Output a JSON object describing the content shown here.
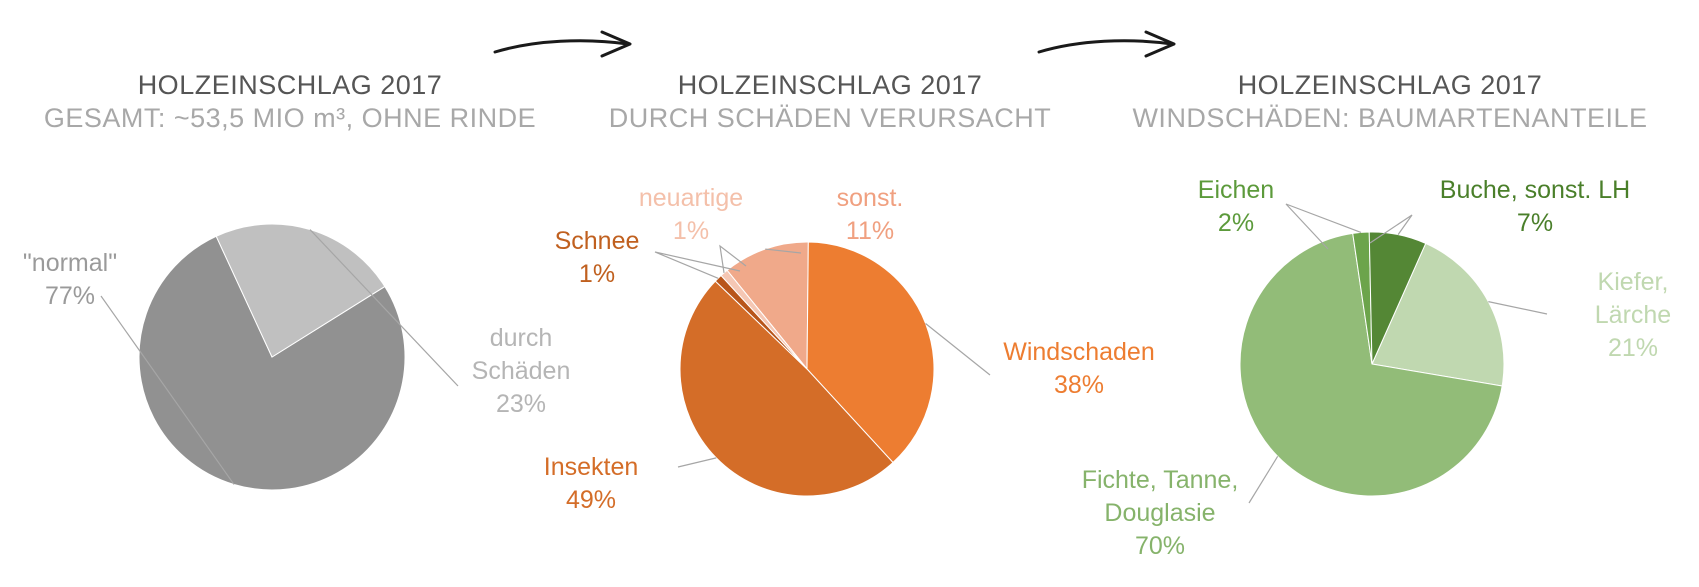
{
  "chart_data": [
    {
      "type": "pie",
      "title": "HOLZEINSCHLAG 2017",
      "subtitle": "GESAMT: ~53,5 MIO m³, OHNE RINDE",
      "slices": [
        {
          "label": "\"normal\"",
          "value": 77,
          "display": "77%",
          "color": "#919191",
          "label_color": "#9a9a9a"
        },
        {
          "label": "durch Schäden",
          "value": 23,
          "display": "23%",
          "color": "#c0c0c0",
          "label_color": "#b5b5b5"
        }
      ]
    },
    {
      "type": "pie",
      "title": "HOLZEINSCHLAG 2017",
      "subtitle": "DURCH SCHÄDEN VERURSACHT",
      "slices": [
        {
          "label": "sonst.",
          "value": 11,
          "display": "11%",
          "color": "#f0a98a",
          "label_color": "#f0a080"
        },
        {
          "label": "Windschaden",
          "value": 38,
          "display": "38%",
          "color": "#ed7d31",
          "label_color": "#ed7d31"
        },
        {
          "label": "Insekten",
          "value": 49,
          "display": "49%",
          "color": "#d46d28",
          "label_color": "#d46d28"
        },
        {
          "label": "Schnee",
          "value": 1,
          "display": "1%",
          "color": "#b8551a",
          "label_color": "#c0601f"
        },
        {
          "label": "neuartige",
          "value": 1,
          "display": "1%",
          "color": "#f5c7b4",
          "label_color": "#f4c0aa"
        }
      ]
    },
    {
      "type": "pie",
      "title": "HOLZEINSCHLAG 2017",
      "subtitle": "WINDSCHÄDEN: BAUMARTENANTEILE",
      "slices": [
        {
          "label": "Kiefer, Lärche",
          "value": 21,
          "display": "21%",
          "color": "#c0d8b0",
          "label_color": "#c0d8b0"
        },
        {
          "label": "Fichte, Tanne, Douglasie",
          "value": 70,
          "display": "70%",
          "color": "#92bc78",
          "label_color": "#86b36b"
        },
        {
          "label": "Eichen",
          "value": 2,
          "display": "2%",
          "color": "#6ca44b",
          "label_color": "#5c9a3b"
        },
        {
          "label": "Buche, sonst. LH",
          "value": 7,
          "display": "7%",
          "color": "#548735",
          "label_color": "#4a7f2a"
        }
      ]
    }
  ]
}
